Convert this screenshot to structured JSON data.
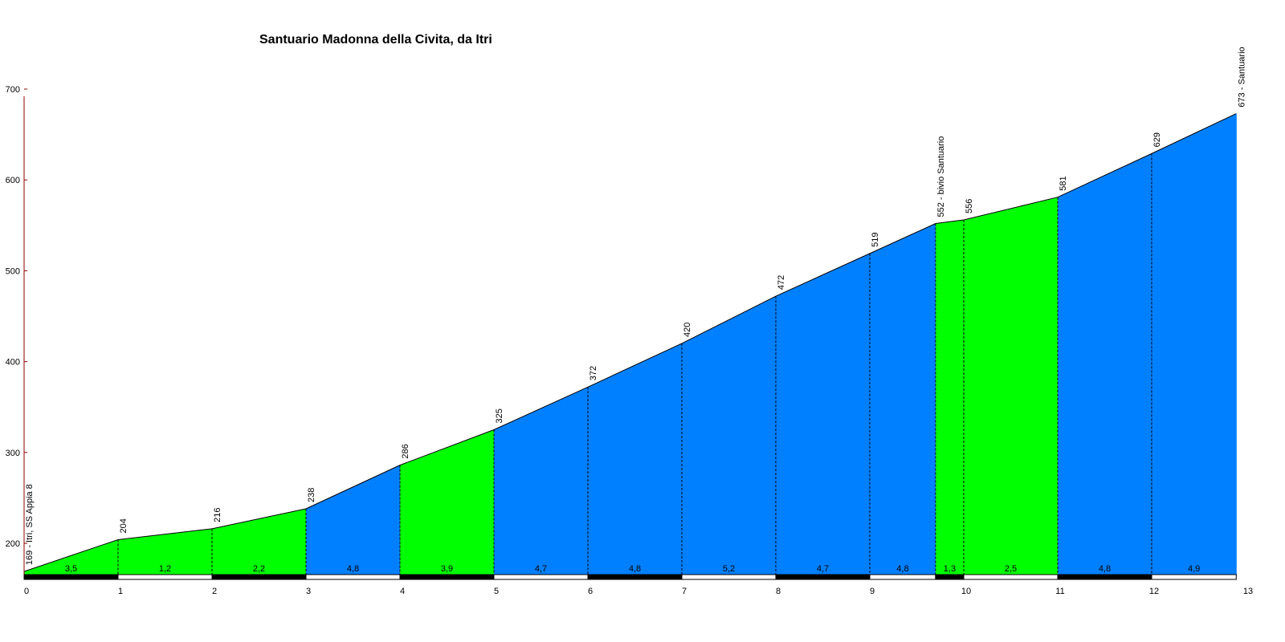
{
  "chart_data": {
    "type": "area",
    "title": "Santuario Madonna della Civita, da Itri",
    "xlabel": "",
    "ylabel": "",
    "xlim": [
      0,
      13
    ],
    "ylim": [
      160,
      700
    ],
    "y_ticks": [
      "200",
      "300",
      "400",
      "500",
      "600",
      "700"
    ],
    "x_ticks": [
      "0",
      "1",
      "2",
      "3",
      "4",
      "5",
      "6",
      "7",
      "8",
      "9",
      "10",
      "11",
      "12",
      "13"
    ],
    "points": [
      {
        "x": 0,
        "y": 169,
        "label": "169 - Itri, SS Appia 8"
      },
      {
        "x": 1,
        "y": 204,
        "label": "204"
      },
      {
        "x": 2,
        "y": 216,
        "label": "216"
      },
      {
        "x": 3,
        "y": 238,
        "label": "238"
      },
      {
        "x": 4,
        "y": 286,
        "label": "286"
      },
      {
        "x": 5,
        "y": 325,
        "label": "325"
      },
      {
        "x": 6,
        "y": 372,
        "label": "372"
      },
      {
        "x": 7,
        "y": 420,
        "label": "420"
      },
      {
        "x": 8,
        "y": 472,
        "label": "472"
      },
      {
        "x": 9,
        "y": 519,
        "label": "519"
      },
      {
        "x": 9.7,
        "y": 552,
        "label": "552 - bivio Santuario"
      },
      {
        "x": 10,
        "y": 556,
        "label": "556"
      },
      {
        "x": 11,
        "y": 581,
        "label": "581"
      },
      {
        "x": 12,
        "y": 629,
        "label": "629"
      },
      {
        "x": 12.9,
        "y": 673,
        "label": "673 - Santuario"
      }
    ],
    "segments": [
      {
        "grade": "3,5",
        "color": "#00ff00"
      },
      {
        "grade": "1,2",
        "color": "#00ff00"
      },
      {
        "grade": "2,2",
        "color": "#00ff00"
      },
      {
        "grade": "4,8",
        "color": "#0080ff"
      },
      {
        "grade": "3,9",
        "color": "#00ff00"
      },
      {
        "grade": "4,7",
        "color": "#0080ff"
      },
      {
        "grade": "4,8",
        "color": "#0080ff"
      },
      {
        "grade": "5,2",
        "color": "#0080ff"
      },
      {
        "grade": "4,7",
        "color": "#0080ff"
      },
      {
        "grade": "4,8",
        "color": "#0080ff"
      },
      {
        "grade": "1,3",
        "color": "#00ff00"
      },
      {
        "grade": "2,5",
        "color": "#00ff00"
      },
      {
        "grade": "4,8",
        "color": "#0080ff"
      },
      {
        "grade": "4,9",
        "color": "#0080ff"
      }
    ],
    "colors": {
      "green": "#00ff00",
      "blue": "#0080ff",
      "axis": "#8b0000"
    },
    "grid": false
  }
}
